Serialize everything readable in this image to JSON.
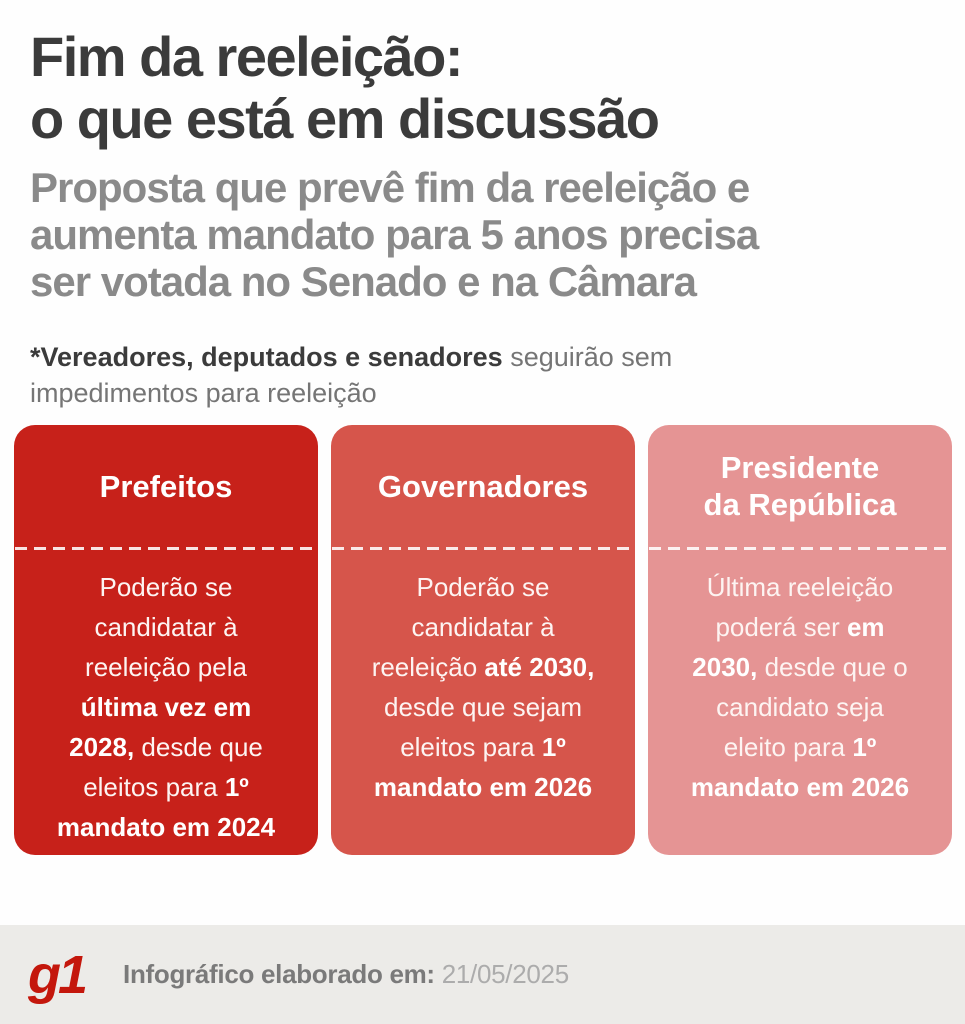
{
  "header": {
    "title": "Fim da reeleição:\no que está em discussão",
    "subtitle": "Proposta que prevê fim da reeleição e\naumenta mandato para 5 anos precisa\nser votada no Senado e na Câmara",
    "note_segments": [
      {
        "t": "*Vereadores, deputados e senadores",
        "b": true
      },
      {
        "t": " seguirão sem\nimpedimentos para reeleição",
        "b": false
      }
    ]
  },
  "cards": [
    {
      "title": "Prefeitos",
      "color": "#c7211a",
      "body_segments": [
        {
          "t": "Poderão se\ncandidatar à\nreeleição pela\n",
          "b": false
        },
        {
          "t": "última vez em\n2028,",
          "b": true
        },
        {
          "t": " desde que\neleitos para ",
          "b": false
        },
        {
          "t": "1º",
          "b": true
        },
        {
          "t": "\n",
          "b": false
        },
        {
          "t": "mandato em 2024",
          "b": true
        }
      ]
    },
    {
      "title": "Governadores",
      "color": "#d6554b",
      "body_segments": [
        {
          "t": "Poderão se\ncandidatar à\nreeleição ",
          "b": false
        },
        {
          "t": "até 2030,",
          "b": true
        },
        {
          "t": "\ndesde que sejam\neleitos para ",
          "b": false
        },
        {
          "t": "1º",
          "b": true
        },
        {
          "t": "\n",
          "b": false
        },
        {
          "t": "mandato em 2026",
          "b": true
        }
      ]
    },
    {
      "title": "Presidente\nda República",
      "color": "#e59494",
      "body_segments": [
        {
          "t": "Última reeleição\npoderá ser ",
          "b": false
        },
        {
          "t": "em\n2030,",
          "b": true
        },
        {
          "t": " desde que o\ncandidato seja\neleito para ",
          "b": false
        },
        {
          "t": "1º",
          "b": true
        },
        {
          "t": "\n",
          "b": false
        },
        {
          "t": "mandato em 2026",
          "b": true
        }
      ]
    }
  ],
  "footer": {
    "logo_text": "g1",
    "logo_color": "#c4170c",
    "label": "Infográfico elaborado em:",
    "date": "21/05/2025"
  }
}
